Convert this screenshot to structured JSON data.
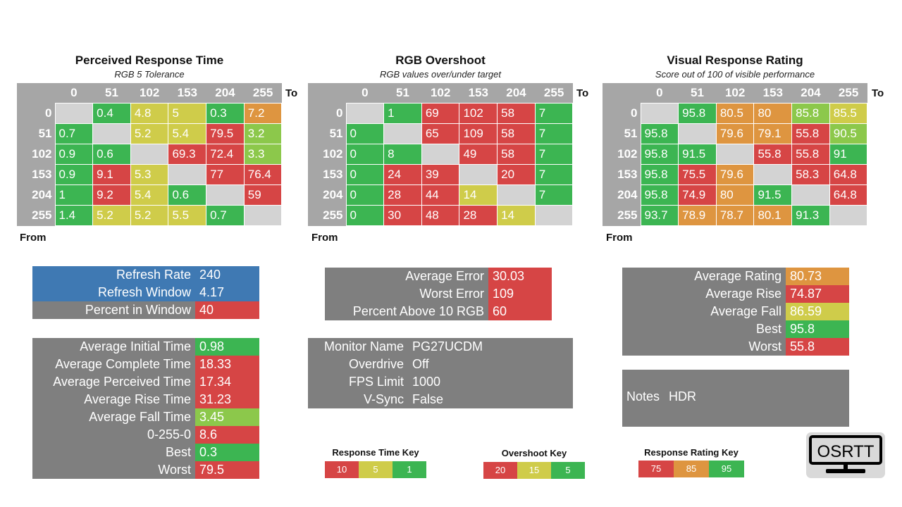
{
  "colors": {
    "green": "#3cb552",
    "lgreen": "#8cc84b",
    "yellow": "#cfcc4a",
    "orange": "#de9540",
    "red": "#d64545",
    "blue": "#3f79b3",
    "grey": "#7f7f7f",
    "header": "#a6a6a6",
    "diag": "#d3d3d3"
  },
  "heatmaps": [
    {
      "title": "Perceived Response Time",
      "subtitle": "RGB 5 Tolerance",
      "to_label": "To",
      "from_label": "From",
      "cols": [
        "0",
        "51",
        "102",
        "153",
        "204",
        "255"
      ],
      "rows": [
        {
          "label": "0",
          "cells": [
            {
              "v": "",
              "c": "diag"
            },
            {
              "v": "0.4",
              "c": "green"
            },
            {
              "v": "4.8",
              "c": "yellow"
            },
            {
              "v": "5",
              "c": "yellow"
            },
            {
              "v": "0.3",
              "c": "green"
            },
            {
              "v": "7.2",
              "c": "orange"
            }
          ]
        },
        {
          "label": "51",
          "cells": [
            {
              "v": "0.7",
              "c": "green"
            },
            {
              "v": "",
              "c": "diag"
            },
            {
              "v": "5.2",
              "c": "yellow"
            },
            {
              "v": "5.4",
              "c": "yellow"
            },
            {
              "v": "79.5",
              "c": "red"
            },
            {
              "v": "3.2",
              "c": "lgreen"
            }
          ]
        },
        {
          "label": "102",
          "cells": [
            {
              "v": "0.9",
              "c": "green"
            },
            {
              "v": "0.6",
              "c": "green"
            },
            {
              "v": "",
              "c": "diag"
            },
            {
              "v": "69.3",
              "c": "red"
            },
            {
              "v": "72.4",
              "c": "red"
            },
            {
              "v": "3.3",
              "c": "lgreen"
            }
          ]
        },
        {
          "label": "153",
          "cells": [
            {
              "v": "0.9",
              "c": "green"
            },
            {
              "v": "9.1",
              "c": "red"
            },
            {
              "v": "5.3",
              "c": "yellow"
            },
            {
              "v": "",
              "c": "diag"
            },
            {
              "v": "77",
              "c": "red"
            },
            {
              "v": "76.4",
              "c": "red"
            }
          ]
        },
        {
          "label": "204",
          "cells": [
            {
              "v": "1",
              "c": "green"
            },
            {
              "v": "9.2",
              "c": "red"
            },
            {
              "v": "5.4",
              "c": "yellow"
            },
            {
              "v": "0.6",
              "c": "green"
            },
            {
              "v": "",
              "c": "diag"
            },
            {
              "v": "59",
              "c": "red"
            }
          ]
        },
        {
          "label": "255",
          "cells": [
            {
              "v": "1.4",
              "c": "green"
            },
            {
              "v": "5.2",
              "c": "yellow"
            },
            {
              "v": "5.2",
              "c": "yellow"
            },
            {
              "v": "5.5",
              "c": "yellow"
            },
            {
              "v": "0.7",
              "c": "green"
            },
            {
              "v": "",
              "c": "diag"
            }
          ]
        }
      ]
    },
    {
      "title": "RGB Overshoot",
      "subtitle": "RGB values over/under target",
      "to_label": "To",
      "from_label": "From",
      "cols": [
        "0",
        "51",
        "102",
        "153",
        "204",
        "255"
      ],
      "rows": [
        {
          "label": "0",
          "cells": [
            {
              "v": "",
              "c": "diag"
            },
            {
              "v": "1",
              "c": "green"
            },
            {
              "v": "69",
              "c": "red"
            },
            {
              "v": "102",
              "c": "red"
            },
            {
              "v": "58",
              "c": "red"
            },
            {
              "v": "7",
              "c": "green"
            }
          ]
        },
        {
          "label": "51",
          "cells": [
            {
              "v": "0",
              "c": "green"
            },
            {
              "v": "",
              "c": "diag"
            },
            {
              "v": "65",
              "c": "red"
            },
            {
              "v": "109",
              "c": "red"
            },
            {
              "v": "58",
              "c": "red"
            },
            {
              "v": "7",
              "c": "green"
            }
          ]
        },
        {
          "label": "102",
          "cells": [
            {
              "v": "0",
              "c": "green"
            },
            {
              "v": "8",
              "c": "green"
            },
            {
              "v": "",
              "c": "diag"
            },
            {
              "v": "49",
              "c": "red"
            },
            {
              "v": "58",
              "c": "red"
            },
            {
              "v": "7",
              "c": "green"
            }
          ]
        },
        {
          "label": "153",
          "cells": [
            {
              "v": "0",
              "c": "green"
            },
            {
              "v": "24",
              "c": "red"
            },
            {
              "v": "39",
              "c": "red"
            },
            {
              "v": "",
              "c": "diag"
            },
            {
              "v": "20",
              "c": "red"
            },
            {
              "v": "7",
              "c": "green"
            }
          ]
        },
        {
          "label": "204",
          "cells": [
            {
              "v": "0",
              "c": "green"
            },
            {
              "v": "28",
              "c": "red"
            },
            {
              "v": "44",
              "c": "red"
            },
            {
              "v": "14",
              "c": "yellow"
            },
            {
              "v": "",
              "c": "diag"
            },
            {
              "v": "7",
              "c": "green"
            }
          ]
        },
        {
          "label": "255",
          "cells": [
            {
              "v": "0",
              "c": "green"
            },
            {
              "v": "30",
              "c": "red"
            },
            {
              "v": "48",
              "c": "red"
            },
            {
              "v": "28",
              "c": "red"
            },
            {
              "v": "14",
              "c": "yellow"
            },
            {
              "v": "",
              "c": "diag"
            }
          ]
        }
      ]
    },
    {
      "title": "Visual Response Rating",
      "subtitle": "Score out of 100 of visible performance",
      "to_label": "To",
      "from_label": "From",
      "cols": [
        "0",
        "51",
        "102",
        "153",
        "204",
        "255"
      ],
      "rows": [
        {
          "label": "0",
          "cells": [
            {
              "v": "",
              "c": "diag"
            },
            {
              "v": "95.8",
              "c": "green"
            },
            {
              "v": "80.5",
              "c": "orange"
            },
            {
              "v": "80",
              "c": "orange"
            },
            {
              "v": "85.8",
              "c": "lgreen"
            },
            {
              "v": "85.5",
              "c": "yellow"
            }
          ]
        },
        {
          "label": "51",
          "cells": [
            {
              "v": "95.8",
              "c": "green"
            },
            {
              "v": "",
              "c": "diag"
            },
            {
              "v": "79.6",
              "c": "orange"
            },
            {
              "v": "79.1",
              "c": "orange"
            },
            {
              "v": "55.8",
              "c": "red"
            },
            {
              "v": "90.5",
              "c": "lgreen"
            }
          ]
        },
        {
          "label": "102",
          "cells": [
            {
              "v": "95.8",
              "c": "green"
            },
            {
              "v": "91.5",
              "c": "green"
            },
            {
              "v": "",
              "c": "diag"
            },
            {
              "v": "55.8",
              "c": "red"
            },
            {
              "v": "55.8",
              "c": "red"
            },
            {
              "v": "91",
              "c": "green"
            }
          ]
        },
        {
          "label": "153",
          "cells": [
            {
              "v": "95.8",
              "c": "green"
            },
            {
              "v": "75.5",
              "c": "red"
            },
            {
              "v": "79.6",
              "c": "orange"
            },
            {
              "v": "",
              "c": "diag"
            },
            {
              "v": "58.3",
              "c": "red"
            },
            {
              "v": "64.8",
              "c": "red"
            }
          ]
        },
        {
          "label": "204",
          "cells": [
            {
              "v": "95.8",
              "c": "green"
            },
            {
              "v": "74.9",
              "c": "red"
            },
            {
              "v": "80",
              "c": "orange"
            },
            {
              "v": "91.5",
              "c": "green"
            },
            {
              "v": "",
              "c": "diag"
            },
            {
              "v": "64.8",
              "c": "red"
            }
          ]
        },
        {
          "label": "255",
          "cells": [
            {
              "v": "93.7",
              "c": "green"
            },
            {
              "v": "78.9",
              "c": "orange"
            },
            {
              "v": "78.7",
              "c": "orange"
            },
            {
              "v": "80.1",
              "c": "orange"
            },
            {
              "v": "91.3",
              "c": "green"
            },
            {
              "v": "",
              "c": "diag"
            }
          ]
        }
      ]
    }
  ],
  "refresh_panel": [
    {
      "label": "Refresh Rate",
      "value": "240",
      "lc": "blue",
      "vc": "blue"
    },
    {
      "label": "Refresh Window",
      "value": "4.17",
      "lc": "blue",
      "vc": "blue"
    },
    {
      "label": "Percent in Window",
      "value": "40",
      "lc": "grey",
      "vc": "red"
    }
  ],
  "timing_panel": [
    {
      "label": "Average Initial Time",
      "value": "0.98",
      "lc": "grey",
      "vc": "green"
    },
    {
      "label": "Average Complete Time",
      "value": "18.33",
      "lc": "grey",
      "vc": "red"
    },
    {
      "label": "Average Perceived Time",
      "value": "17.34",
      "lc": "grey",
      "vc": "red"
    },
    {
      "label": "Average Rise Time",
      "value": "31.23",
      "lc": "grey",
      "vc": "red"
    },
    {
      "label": "Average Fall Time",
      "value": "3.45",
      "lc": "grey",
      "vc": "lgreen"
    },
    {
      "label": "0-255-0",
      "value": "8.6",
      "lc": "grey",
      "vc": "red"
    },
    {
      "label": "Best",
      "value": "0.3",
      "lc": "grey",
      "vc": "green"
    },
    {
      "label": "Worst",
      "value": "79.5",
      "lc": "grey",
      "vc": "red"
    }
  ],
  "error_panel": [
    {
      "label": "Average Error",
      "value": "30.03",
      "lc": "grey",
      "vc": "red"
    },
    {
      "label": "Worst Error",
      "value": "109",
      "lc": "grey",
      "vc": "red"
    },
    {
      "label": "Percent Above 10 RGB",
      "value": "60",
      "lc": "grey",
      "vc": "red"
    }
  ],
  "monitor_panel": [
    {
      "label": "Monitor Name",
      "value": "PG27UCDM",
      "lc": "grey",
      "vc": "grey"
    },
    {
      "label": "Overdrive",
      "value": "Off",
      "lc": "grey",
      "vc": "grey"
    },
    {
      "label": "FPS Limit",
      "value": "1000",
      "lc": "grey",
      "vc": "grey"
    },
    {
      "label": "V-Sync",
      "value": "False",
      "lc": "grey",
      "vc": "grey"
    }
  ],
  "rating_panel": [
    {
      "label": "Average Rating",
      "value": "80.73",
      "lc": "grey",
      "vc": "orange"
    },
    {
      "label": "Average Rise",
      "value": "74.87",
      "lc": "grey",
      "vc": "red"
    },
    {
      "label": "Average Fall",
      "value": "86.59",
      "lc": "grey",
      "vc": "yellow"
    },
    {
      "label": "Best",
      "value": "95.8",
      "lc": "grey",
      "vc": "green"
    },
    {
      "label": "Worst",
      "value": "55.8",
      "lc": "grey",
      "vc": "red"
    }
  ],
  "notes": {
    "label": "Notes",
    "value": "HDR"
  },
  "keys": [
    {
      "title": "Response Time Key",
      "items": [
        {
          "v": "10",
          "c": "red"
        },
        {
          "v": "5",
          "c": "yellow"
        },
        {
          "v": "1",
          "c": "green"
        }
      ]
    },
    {
      "title": "Overshoot Key",
      "items": [
        {
          "v": "20",
          "c": "red"
        },
        {
          "v": "15",
          "c": "yellow"
        },
        {
          "v": "5",
          "c": "green"
        }
      ]
    },
    {
      "title": "Response Rating Key",
      "items": [
        {
          "v": "75",
          "c": "red"
        },
        {
          "v": "85",
          "c": "orange"
        },
        {
          "v": "95",
          "c": "green"
        }
      ]
    }
  ],
  "logo": {
    "text": "OSRTT"
  }
}
